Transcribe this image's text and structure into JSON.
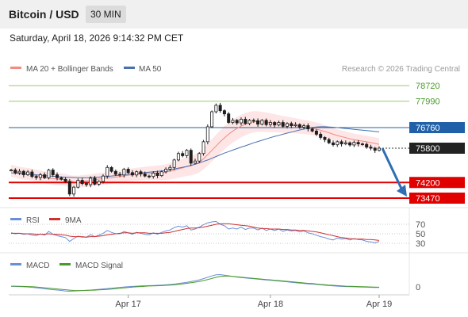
{
  "header": {
    "title": "Bitcoin / USD",
    "timeframe": "30 MIN",
    "datetime": "Saturday, April 18, 2026 9:14:32 PM CET"
  },
  "legend": {
    "bollinger": "MA 20 + Bollinger Bands",
    "ma50": "MA 50",
    "credit": "Research © 2026 Trading Central",
    "rsi": "RSI",
    "rsi_ma": "9MA",
    "macd": "MACD",
    "macd_signal": "MACD Signal"
  },
  "colors": {
    "candle": "#1e1e1e",
    "bollinger": "#f28b82",
    "bollinger_fill": "#fde2e0",
    "ma50": "#4a70b0",
    "resistance": "#9bc96b",
    "support": "#e00000",
    "pivot": "#2060a8",
    "arrow": "#2f6db5",
    "rsi": "#6a8fd8",
    "rsi_ma": "#d03030",
    "macd": "#6a8fd8",
    "macd_signal": "#4a9a2a"
  },
  "chart_data": [
    {
      "type": "candlestick",
      "title": "",
      "x_ticks": [
        "Apr 17",
        "Apr 18",
        "Apr 19"
      ],
      "ylim": [
        73200,
        79000
      ],
      "levels": [
        {
          "value": 78720,
          "label": "78720",
          "kind": "resistance"
        },
        {
          "value": 77990,
          "label": "77990",
          "kind": "resistance"
        },
        {
          "value": 76760,
          "label": "76760",
          "kind": "pivot"
        },
        {
          "value": 75800,
          "label": "75800",
          "kind": "last"
        },
        {
          "value": 74200,
          "label": "74200",
          "kind": "support"
        },
        {
          "value": 73470,
          "label": "73470",
          "kind": "support"
        }
      ],
      "series": [
        {
          "name": "Price",
          "values": [
            74780,
            74650,
            74720,
            74560,
            74690,
            74480,
            74430,
            74560,
            74420,
            74780,
            74560,
            74420,
            74350,
            74250,
            73660,
            73980,
            74300,
            74150,
            74100,
            74400,
            74120,
            74250,
            74500,
            74900,
            74720,
            74580,
            74550,
            74820,
            74660,
            74550,
            74700,
            74600,
            74500,
            74480,
            74640,
            74520,
            74700,
            74820,
            74900,
            75250,
            75550,
            75450,
            75700,
            75100,
            75200,
            75550,
            76100,
            76800,
            77500,
            77800,
            77550,
            77400,
            77000,
            77100,
            76980,
            77150,
            76950,
            77100,
            77080,
            76920,
            77100,
            76900,
            77000,
            76880,
            77000,
            76820,
            76950,
            76850,
            76900,
            76780,
            76850,
            76700,
            76600,
            76450,
            76300,
            76200,
            76050,
            75960,
            76100,
            76000,
            76050,
            75950,
            76070,
            76000,
            75980,
            75850,
            75800,
            75700,
            75800
          ]
        },
        {
          "name": "MA 20 + Bollinger Bands",
          "values": [
            74750,
            74700,
            74650,
            74620,
            74600,
            74560,
            74520,
            74480,
            74440,
            74400,
            74380,
            74360,
            74350,
            74320,
            74260,
            74240,
            74240,
            74260,
            74280,
            74300,
            74330,
            74360,
            74380,
            74400,
            74420,
            74450,
            74480,
            74500,
            74540,
            74560,
            74580,
            74600,
            74620,
            74630,
            74640,
            74650,
            74660,
            74680,
            74720,
            74770,
            74830,
            74880,
            74940,
            74980,
            75050,
            75150,
            75300,
            75500,
            75700,
            75900,
            76100,
            76280,
            76450,
            76600,
            76720,
            76830,
            76920,
            76990,
            77030,
            77040,
            77030,
            77010,
            76990,
            76960,
            76940,
            76910,
            76890,
            76870,
            76850,
            76820,
            76790,
            76760,
            76730,
            76690,
            76640,
            76580,
            76520,
            76450,
            76390,
            76340,
            76290,
            76240,
            76200,
            76160,
            76130,
            76100,
            76060,
            76020,
            75980
          ]
        },
        {
          "name": "MA 50",
          "values": [
            74650,
            74640,
            74620,
            74610,
            74600,
            74580,
            74560,
            74540,
            74520,
            74500,
            74490,
            74480,
            74460,
            74450,
            74440,
            74430,
            74420,
            74420,
            74420,
            74430,
            74440,
            74450,
            74470,
            74480,
            74500,
            74520,
            74540,
            74560,
            74580,
            74600,
            74620,
            74640,
            74660,
            74680,
            74700,
            74720,
            74740,
            74760,
            74790,
            74830,
            74870,
            74910,
            74950,
            75000,
            75050,
            75110,
            75180,
            75250,
            75330,
            75410,
            75490,
            75570,
            75640,
            75710,
            75780,
            75850,
            75910,
            75980,
            76050,
            76110,
            76170,
            76230,
            76290,
            76350,
            76400,
            76450,
            76500,
            76550,
            76600,
            76650,
            76690,
            76730,
            76770,
            76790,
            76800,
            76800,
            76790,
            76780,
            76760,
            76740,
            76720,
            76700,
            76680,
            76660,
            76640,
            76620,
            76600,
            76580,
            76560
          ]
        }
      ]
    },
    {
      "type": "line",
      "title": "RSI",
      "y_ticks": [
        "70",
        "50",
        "30"
      ],
      "ylim": [
        20,
        80
      ],
      "series": [
        {
          "name": "RSI",
          "values": [
            52,
            50,
            51,
            49,
            50,
            47,
            46,
            50,
            47,
            55,
            49,
            46,
            44,
            42,
            34,
            40,
            45,
            43,
            43,
            48,
            44,
            47,
            51,
            57,
            53,
            50,
            50,
            55,
            52,
            49,
            53,
            51,
            49,
            48,
            52,
            49,
            53,
            56,
            58,
            63,
            66,
            64,
            67,
            58,
            60,
            64,
            69,
            73,
            75,
            76,
            70,
            67,
            60,
            62,
            60,
            64,
            59,
            62,
            62,
            58,
            62,
            57,
            60,
            57,
            60,
            55,
            58,
            56,
            57,
            54,
            56,
            52,
            50,
            47,
            44,
            42,
            39,
            37,
            41,
            39,
            40,
            37,
            40,
            38,
            37,
            34,
            33,
            31,
            34
          ]
        },
        {
          "name": "9MA",
          "values": [
            51,
            51,
            51,
            50,
            50,
            50,
            49,
            49,
            49,
            50,
            49,
            49,
            48,
            47,
            45,
            44,
            44,
            44,
            43,
            44,
            44,
            45,
            46,
            48,
            49,
            50,
            51,
            52,
            52,
            51,
            52,
            52,
            52,
            51,
            51,
            51,
            51,
            52,
            53,
            55,
            57,
            59,
            61,
            62,
            62,
            63,
            64,
            66,
            68,
            70,
            71,
            71,
            71,
            70,
            69,
            68,
            67,
            66,
            64,
            62,
            61,
            61,
            60,
            60,
            60,
            59,
            59,
            58,
            58,
            57,
            57,
            56,
            55,
            54,
            52,
            50,
            48,
            46,
            44,
            42,
            41,
            40,
            39,
            39,
            39,
            38,
            38,
            37,
            36
          ]
        }
      ]
    },
    {
      "type": "line",
      "title": "MACD",
      "y_ticks": [
        "0"
      ],
      "series": [
        {
          "name": "MACD",
          "values": [
            0.5,
            0.4,
            0.3,
            0.1,
            0,
            -0.3,
            -0.6,
            -1,
            -1.4,
            -1.7,
            -2,
            -2.3,
            -2.6,
            -3,
            -3.2,
            -3.1,
            -2.9,
            -2.7,
            -2.5,
            -2.3,
            -2,
            -1.8,
            -1.5,
            -1.2,
            -0.9,
            -0.6,
            -0.3,
            0,
            0.2,
            0.4,
            0.6,
            0.8,
            0.9,
            1,
            1.1,
            1.2,
            1.4,
            1.6,
            1.8,
            2.1,
            2.5,
            3,
            3.5,
            4,
            4.6,
            5.3,
            6.2,
            7.2,
            8.2,
            9,
            9.2,
            8.8,
            8.3,
            7.8,
            7.4,
            7,
            6.7,
            6.4,
            6.1,
            5.8,
            5.5,
            5.2,
            5,
            4.7,
            4.4,
            4.1,
            3.8,
            3.5,
            3.2,
            2.9,
            2.6,
            2.3,
            2.1,
            1.9,
            1.6,
            1.3,
            1,
            0.8,
            0.6,
            0.4,
            0.3,
            0.2,
            0.1,
            0,
            -0.1,
            -0.2,
            -0.3,
            -0.4,
            -0.4
          ]
        },
        {
          "name": "MACD Signal",
          "values": [
            0.6,
            0.55,
            0.5,
            0.4,
            0.3,
            0.2,
            0,
            -0.3,
            -0.6,
            -0.9,
            -1.2,
            -1.5,
            -1.8,
            -2.1,
            -2.4,
            -2.6,
            -2.7,
            -2.7,
            -2.6,
            -2.5,
            -2.4,
            -2.2,
            -2,
            -1.8,
            -1.6,
            -1.3,
            -1,
            -0.7,
            -0.4,
            -0.1,
            0.1,
            0.3,
            0.5,
            0.7,
            0.8,
            0.9,
            1,
            1.2,
            1.4,
            1.6,
            1.9,
            2.3,
            2.7,
            3.1,
            3.6,
            4.1,
            4.8,
            5.5,
            6.3,
            7.2,
            7.8,
            8.1,
            8.1,
            7.9,
            7.6,
            7.3,
            7,
            6.7,
            6.4,
            6.1,
            5.8,
            5.5,
            5.3,
            5,
            4.8,
            4.5,
            4.2,
            3.9,
            3.6,
            3.3,
            3,
            2.7,
            2.5,
            2.2,
            1.9,
            1.7,
            1.4,
            1.2,
            1,
            0.8,
            0.6,
            0.5,
            0.4,
            0.3,
            0.2,
            0.1,
            0,
            -0.1,
            -0.2
          ]
        }
      ]
    }
  ]
}
